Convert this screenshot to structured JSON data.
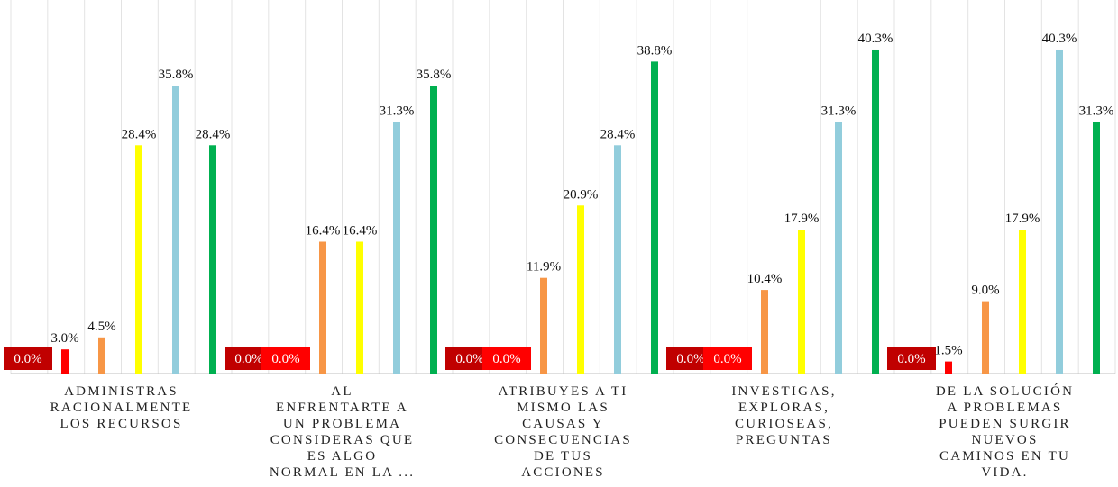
{
  "chart_data": {
    "type": "bar",
    "categories": [
      "ADMINISTRAS\nRACIONALMENTE\nLOS RECURSOS",
      "AL\nENFRENTARTE A\nUN PROBLEMA\nCONSIDERAS QUE\nES ALGO\nNORMAL EN LA ...",
      "ATRIBUYES A TI\nMISMO LAS\nCAUSAS Y\nCONSECUENCIAS\nDE TUS\nACCIONES",
      "INVESTIGAS,\nEXPLORAS,\nCURIOSEAS,\nPREGUNTAS",
      "DE LA SOLUCIÓN\nA PROBLEMAS\nPUEDEN SURGIR\nNUEVOS\nCAMINOS EN TU\nVIDA."
    ],
    "series": [
      {
        "color": "#c00000",
        "values": [
          0.0,
          0.0,
          0.0,
          0.0,
          0.0
        ],
        "value_labels": [
          "0.0%",
          "0.0%",
          "0.0%",
          "0.0%",
          "0.0%"
        ]
      },
      {
        "color": "#ff0000",
        "values": [
          3.0,
          0.0,
          0.0,
          0.0,
          1.5
        ],
        "value_labels": [
          "3.0%",
          "0.0%",
          "0.0%",
          "0.0%",
          "1.5%"
        ]
      },
      {
        "color": "#f79646",
        "values": [
          4.5,
          16.4,
          11.9,
          10.4,
          9.0
        ],
        "value_labels": [
          "4.5%",
          "16.4%",
          "11.9%",
          "10.4%",
          "9.0%"
        ]
      },
      {
        "color": "#ffff00",
        "values": [
          28.4,
          16.4,
          20.9,
          17.9,
          17.9
        ],
        "value_labels": [
          "28.4%",
          "16.4%",
          "20.9%",
          "17.9%",
          "17.9%"
        ]
      },
      {
        "color": "#92cddc",
        "values": [
          35.8,
          31.3,
          28.4,
          31.3,
          40.3
        ],
        "value_labels": [
          "35.8%",
          "31.3%",
          "28.4%",
          "31.3%",
          "40.3%"
        ]
      },
      {
        "color": "#00b050",
        "values": [
          28.4,
          35.8,
          38.8,
          40.3,
          31.3
        ],
        "value_labels": [
          "28.4%",
          "35.8%",
          "38.8%",
          "40.3%",
          "31.3%"
        ]
      }
    ],
    "ylim": [
      0,
      45
    ]
  }
}
